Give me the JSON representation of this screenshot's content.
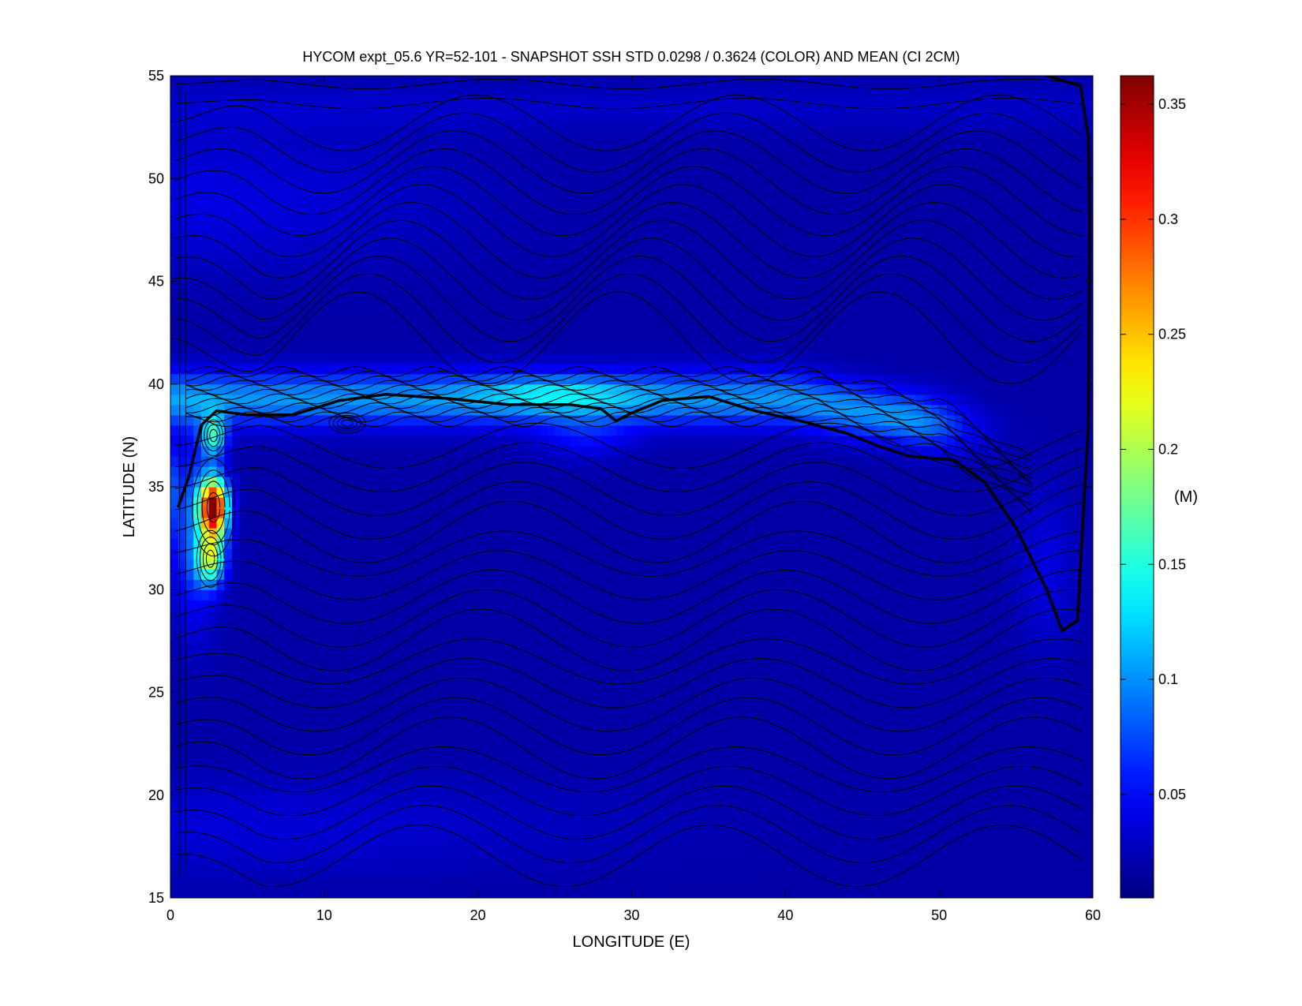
{
  "chart_data": {
    "type": "heatmap",
    "title": "HYCOM expt_05.6 YR=52-101 - SNAPSHOT SSH STD 0.0298 / 0.3624 (COLOR) AND MEAN (CI 2CM)",
    "xlabel": "LONGITUDE (E)",
    "ylabel": "LATITUDE (N)",
    "xlim": [
      0,
      60
    ],
    "ylim": [
      15,
      55
    ],
    "x_ticks": [
      "0",
      "10",
      "20",
      "30",
      "40",
      "50",
      "60"
    ],
    "y_ticks": [
      "15",
      "20",
      "25",
      "30",
      "35",
      "40",
      "45",
      "50",
      "55"
    ],
    "colorbar": {
      "label": "(M)",
      "range": [
        0.005,
        0.3624
      ],
      "ticks": [
        "0.05",
        "0.1",
        "0.15",
        "0.2",
        "0.25",
        "0.3",
        "0.35"
      ],
      "colormap": "jet"
    },
    "stats": {
      "std_mean": 0.0298,
      "std_max": 0.3624,
      "contour_interval_cm": 2
    },
    "features": [
      {
        "name": "western boundary current maximum",
        "lon": 2.8,
        "lat": 34,
        "value": 0.36
      },
      {
        "name": "western boundary current secondary maximum",
        "lon": 2.6,
        "lat": 31.5,
        "value": 0.22
      },
      {
        "name": "separated jet band",
        "lon_range": [
          0,
          52
        ],
        "lat": 39.5,
        "value": 0.12
      }
    ],
    "zero_contour": [
      [
        0.5,
        34
      ],
      [
        1.2,
        35.5
      ],
      [
        2,
        38
      ],
      [
        3,
        38.7
      ],
      [
        5,
        38.5
      ],
      [
        8,
        38.5
      ],
      [
        11,
        39.2
      ],
      [
        14,
        39.5
      ],
      [
        18,
        39.3
      ],
      [
        22,
        39
      ],
      [
        26,
        39
      ],
      [
        28,
        38.8
      ],
      [
        29,
        38.2
      ],
      [
        30,
        38.6
      ],
      [
        32,
        39.2
      ],
      [
        35,
        39.4
      ],
      [
        38,
        38.7
      ],
      [
        41,
        38.2
      ],
      [
        44,
        37.6
      ],
      [
        46,
        37
      ],
      [
        48,
        36.5
      ],
      [
        51,
        36.3
      ],
      [
        53,
        35.2
      ],
      [
        55,
        33
      ],
      [
        57,
        30
      ],
      [
        58,
        28
      ],
      [
        59,
        28.5
      ],
      [
        59.7,
        38
      ],
      [
        59.8,
        48
      ],
      [
        59.7,
        52
      ],
      [
        59.2,
        54.5
      ],
      [
        57,
        55
      ]
    ]
  }
}
